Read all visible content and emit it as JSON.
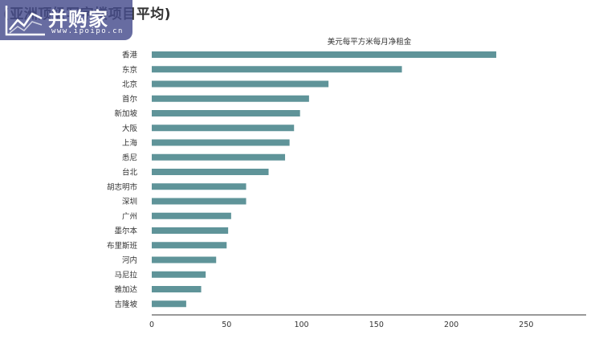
{
  "heading": "(亚洲顶级写字楼项目平均)",
  "watermark": {
    "name": "并购家",
    "url": "www.ipoipo.cn"
  },
  "colors": {
    "bar": "#5f9499",
    "text": "#333333",
    "axis": "#333333"
  },
  "chart_data": {
    "type": "bar",
    "orientation": "horizontal",
    "title": "美元每平方米每月净租金",
    "categories": [
      "香港",
      "东京",
      "北京",
      "首尔",
      "新加坡",
      "大阪",
      "上海",
      "悉尼",
      "台北",
      "胡志明市",
      "深圳",
      "广州",
      "墨尔本",
      "布里斯班",
      "河内",
      "马尼拉",
      "雅加达",
      "吉隆坡"
    ],
    "values": [
      230,
      167,
      118,
      105,
      99,
      95,
      92,
      89,
      78,
      63,
      63,
      53,
      51,
      50,
      43,
      36,
      33,
      23
    ],
    "xlim": [
      0,
      290
    ],
    "xticks": [
      0,
      50,
      100,
      150,
      200,
      250
    ],
    "grid": false
  }
}
